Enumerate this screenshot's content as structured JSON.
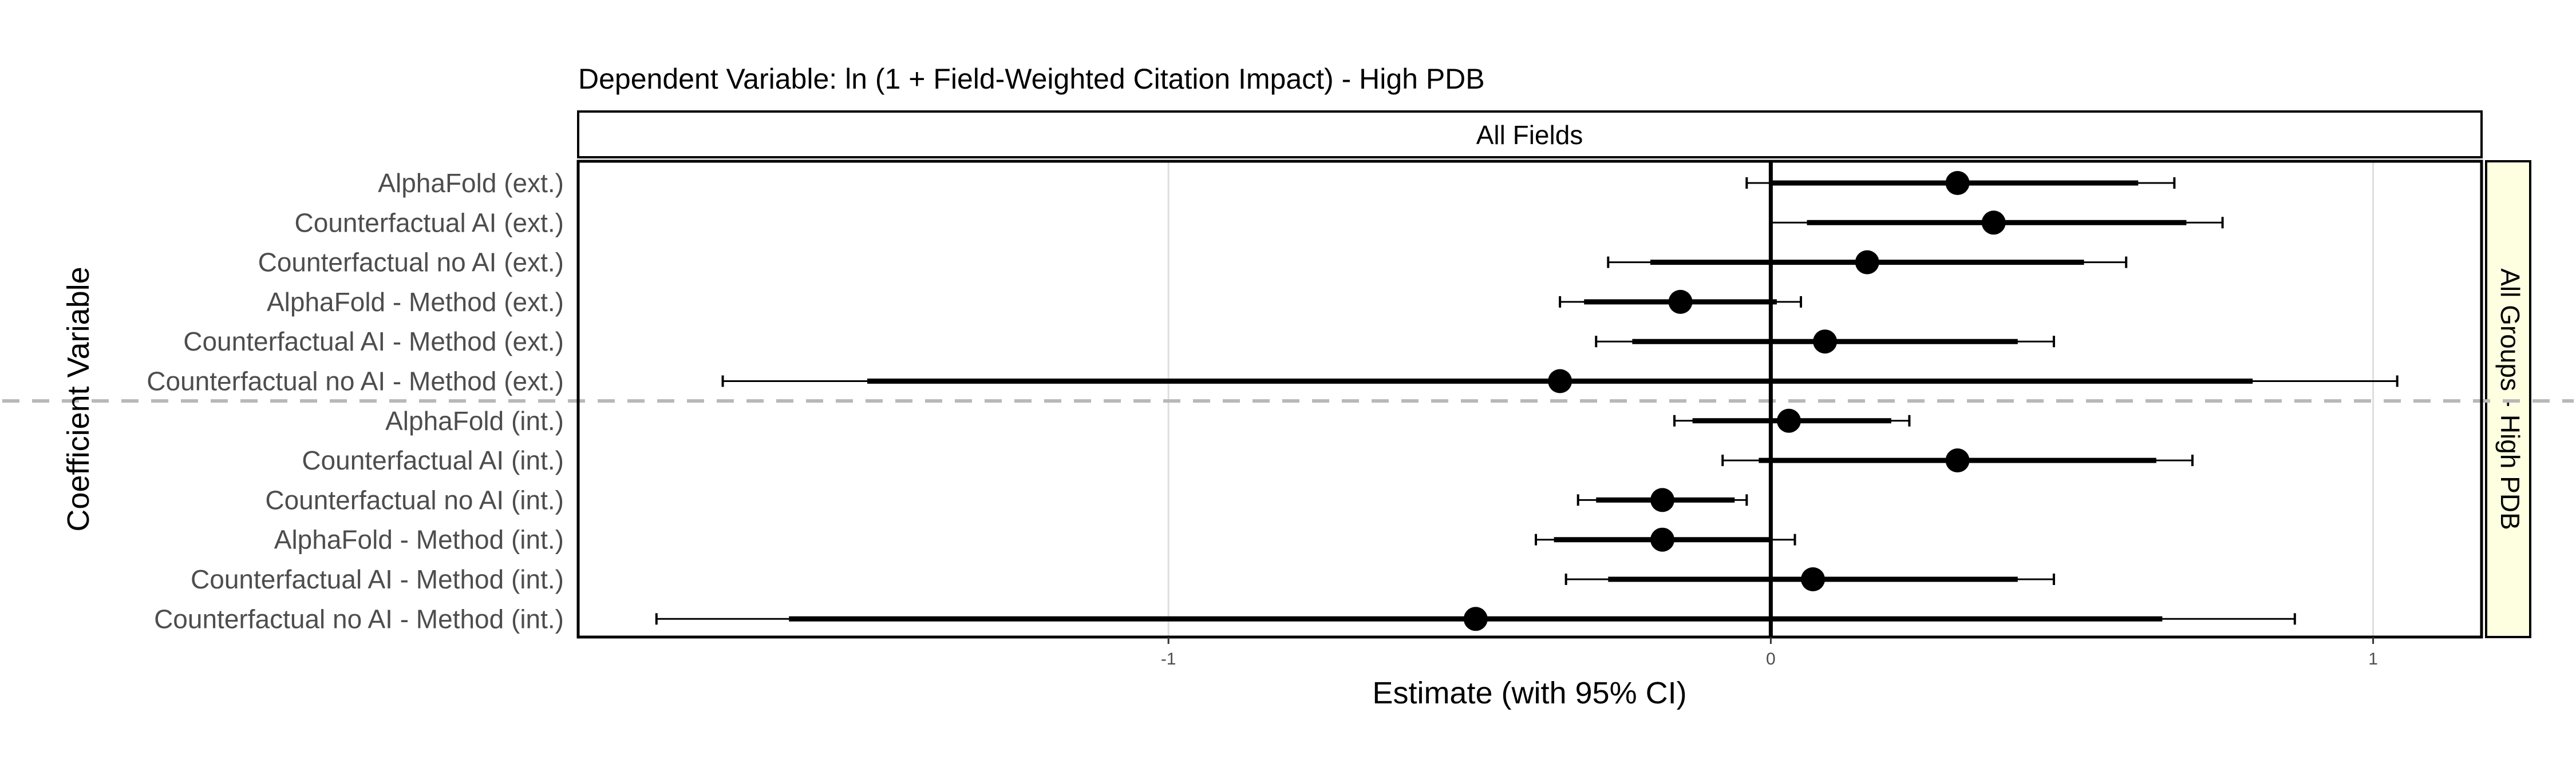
{
  "chart_data": {
    "type": "scatter",
    "subtype": "coefficient-plot",
    "title": "Dependent Variable: ln (1 + Field-Weighted Citation Impact)  -  High PDB",
    "facet_top": "All Fields",
    "facet_right": "All Groups - High PDB",
    "xlabel": "Estimate (with 95% CI)",
    "ylabel": "Coefficient Variable",
    "xlim": [
      -1.98,
      1.18
    ],
    "xticks": [
      -1,
      0,
      1
    ],
    "xtick_labels": [
      "-1",
      "0",
      "1"
    ],
    "grid": true,
    "zero_line": 0,
    "separator_between": [
      "Counterfactual no AI - Method (ext.)",
      "AlphaFold (int.)"
    ],
    "coefficients": [
      {
        "label": "AlphaFold (ext.)",
        "estimate": 0.31,
        "ci90": [
          0.0,
          0.61
        ],
        "ci95": [
          -0.04,
          0.67
        ]
      },
      {
        "label": "Counterfactual AI (ext.)",
        "estimate": 0.37,
        "ci90": [
          0.06,
          0.69
        ],
        "ci95": [
          0.0,
          0.75
        ]
      },
      {
        "label": "Counterfactual no AI (ext.)",
        "estimate": 0.16,
        "ci90": [
          -0.2,
          0.52
        ],
        "ci95": [
          -0.27,
          0.59
        ]
      },
      {
        "label": "AlphaFold - Method (ext.)",
        "estimate": -0.15,
        "ci90": [
          -0.31,
          0.01
        ],
        "ci95": [
          -0.35,
          0.05
        ]
      },
      {
        "label": "Counterfactual AI - Method (ext.)",
        "estimate": 0.09,
        "ci90": [
          -0.23,
          0.41
        ],
        "ci95": [
          -0.29,
          0.47
        ]
      },
      {
        "label": "Counterfactual no AI - Method (ext.)",
        "estimate": -0.35,
        "ci90": [
          -1.5,
          0.8
        ],
        "ci95": [
          -1.74,
          1.04
        ]
      },
      {
        "label": "AlphaFold (int.)",
        "estimate": 0.03,
        "ci90": [
          -0.13,
          0.2
        ],
        "ci95": [
          -0.16,
          0.23
        ]
      },
      {
        "label": "Counterfactual AI (int.)",
        "estimate": 0.31,
        "ci90": [
          -0.02,
          0.64
        ],
        "ci95": [
          -0.08,
          0.7
        ]
      },
      {
        "label": "Counterfactual no AI (int.)",
        "estimate": -0.18,
        "ci90": [
          -0.29,
          -0.06
        ],
        "ci95": [
          -0.32,
          -0.04
        ]
      },
      {
        "label": "AlphaFold - Method (int.)",
        "estimate": -0.18,
        "ci90": [
          -0.36,
          0.0
        ],
        "ci95": [
          -0.39,
          0.04
        ]
      },
      {
        "label": "Counterfactual AI - Method (int.)",
        "estimate": 0.07,
        "ci90": [
          -0.27,
          0.41
        ],
        "ci95": [
          -0.34,
          0.47
        ]
      },
      {
        "label": "Counterfactual no AI - Method (int.)",
        "estimate": -0.49,
        "ci90": [
          -1.63,
          0.65
        ],
        "ci95": [
          -1.85,
          0.87
        ]
      }
    ]
  }
}
